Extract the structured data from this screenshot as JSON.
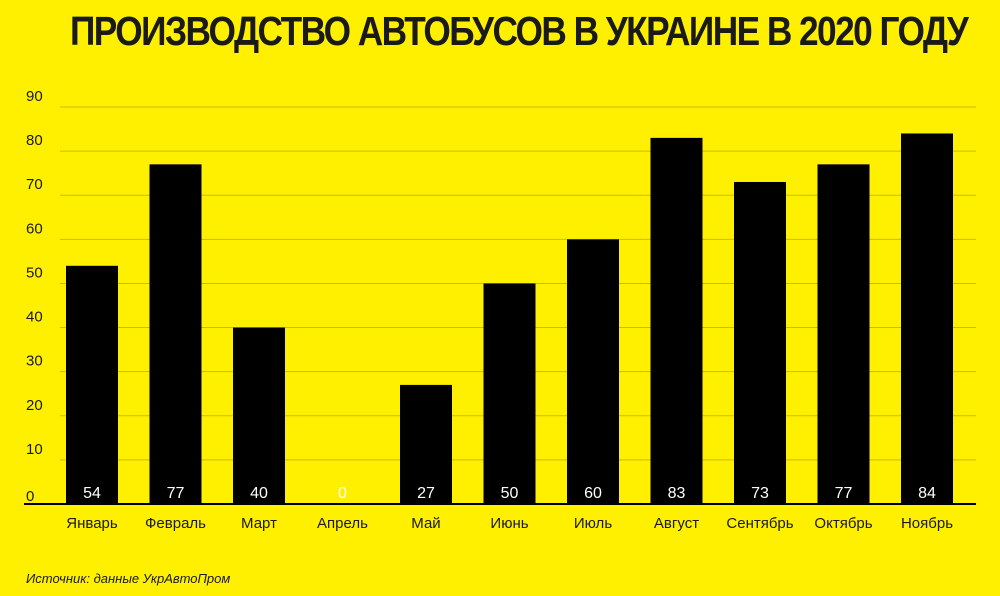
{
  "chart_data": {
    "type": "bar",
    "title": "ПРОИЗВОДСТВО АВТОБУСОВ В УКРАИНЕ В 2020 ГОДУ",
    "categories": [
      "Январь",
      "Февраль",
      "Март",
      "Апрель",
      "Май",
      "Июнь",
      "Июль",
      "Август",
      "Сентябрь",
      "Октябрь",
      "Ноябрь"
    ],
    "values": [
      54,
      77,
      40,
      0,
      27,
      50,
      60,
      83,
      73,
      77,
      84
    ],
    "value_labels": [
      "54",
      "77",
      "40",
      "0",
      "27",
      "50",
      "60",
      "83",
      "73",
      "77",
      "84"
    ],
    "y_ticks": [
      "0",
      "10",
      "20",
      "30",
      "40",
      "50",
      "60",
      "70",
      "80",
      "90"
    ],
    "ylim": [
      0,
      90
    ],
    "xlabel": "",
    "ylabel": "",
    "grid": true,
    "legend": "none",
    "colors": {
      "background": "#fff000",
      "bar": "#000000",
      "grid": "#c9bd00",
      "text": "#1a1a1a",
      "value_label": "#ffffff"
    }
  },
  "source": "Источник: данные УкрАвтоПром"
}
